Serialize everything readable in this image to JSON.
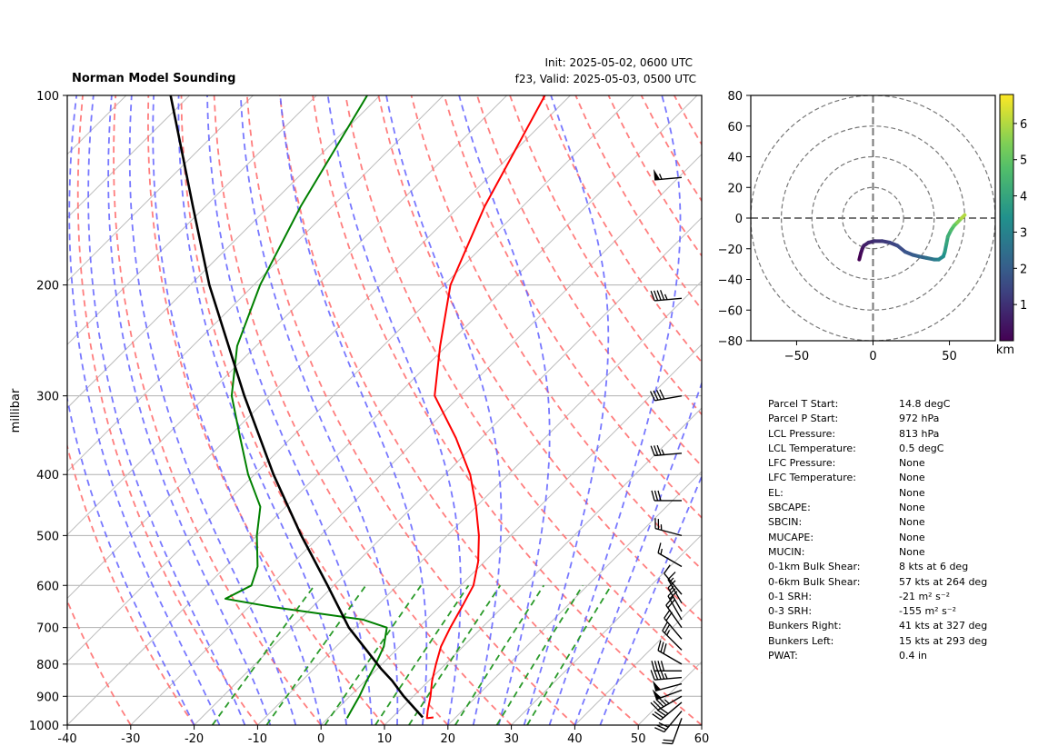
{
  "header": {
    "title": "Norman Model Sounding",
    "init_line": "Init: 2025-05-02, 0600 UTC",
    "valid_line": "f23, Valid: 2025-05-03, 0500 UTC"
  },
  "chart_data": [
    {
      "type": "line",
      "name": "skew-t",
      "ylabel": "millibar",
      "xlim": [
        -40,
        60
      ],
      "ylim": [
        1000,
        100
      ],
      "y_scale": "log",
      "x_ticks": [
        "-40",
        "-30",
        "-20",
        "-10",
        "0",
        "10",
        "20",
        "30",
        "40",
        "50",
        "60"
      ],
      "y_ticks": [
        "1000",
        "900",
        "800",
        "700",
        "600",
        "500",
        "400",
        "300",
        "200",
        "100"
      ],
      "grid": true,
      "colors": {
        "temperature": "#ff0000",
        "dewpoint": "#008000",
        "parcel": "#000000",
        "dry_adiabat": "#ff7070",
        "moist_adiabat": "#6060ff",
        "mixing_ratio": "#2a9a2a",
        "isotherm": "#bbbbbb"
      },
      "temperature": {
        "p": [
          972,
          975,
          950,
          900,
          850,
          800,
          750,
          700,
          650,
          600,
          550,
          500,
          450,
          400,
          350,
          300,
          250,
          200,
          150,
          100
        ],
        "t": [
          16.5,
          15.6,
          14.6,
          12.7,
          10.5,
          8.5,
          6.5,
          5.0,
          3.6,
          2.0,
          -1.0,
          -5.0,
          -10.0,
          -16.0,
          -24.0,
          -34.0,
          -41.0,
          -49.0,
          -56.0,
          -64.0
        ]
      },
      "dewpoint": {
        "p": [
          975,
          950,
          900,
          850,
          800,
          750,
          700,
          680,
          650,
          630,
          600,
          560,
          500,
          450,
          400,
          350,
          300,
          250,
          200,
          150,
          100
        ],
        "td": [
          3.0,
          2.5,
          1.5,
          0.2,
          -1.0,
          -2.5,
          -5.0,
          -10.0,
          -26.0,
          -35.0,
          -33.0,
          -35.0,
          -40.0,
          -44.0,
          -51.0,
          -58.0,
          -66.0,
          -73.0,
          -79.0,
          -85.0,
          -92.0
        ]
      },
      "parcel": {
        "p": [
          972,
          900,
          850,
          813,
          700,
          600,
          500,
          400,
          300,
          200,
          150,
          100
        ],
        "t": [
          14.8,
          8.5,
          4.2,
          0.5,
          -11.0,
          -21.0,
          -33.0,
          -47.0,
          -64.0,
          -87.0,
          -102.0,
          -123.0
        ]
      },
      "wind_barbs": {
        "p": [
          135,
          210,
          300,
          370,
          440,
          500,
          560,
          620,
          640,
          660,
          680,
          700,
          730,
          760,
          800,
          820,
          840,
          860,
          880,
          900,
          920,
          950,
          975
        ],
        "speed_kts": [
          55,
          45,
          40,
          35,
          30,
          25,
          15,
          12,
          15,
          18,
          20,
          20,
          22,
          25,
          30,
          40,
          45,
          50,
          50,
          45,
          40,
          30,
          20
        ],
        "direction_deg": [
          265,
          265,
          260,
          265,
          270,
          285,
          300,
          320,
          330,
          330,
          330,
          325,
          320,
          315,
          300,
          270,
          265,
          255,
          250,
          240,
          230,
          220,
          200
        ]
      }
    },
    {
      "type": "line",
      "name": "hodograph",
      "xlabel": "",
      "colorbar_label": "km",
      "xlim": [
        -80,
        80
      ],
      "ylim": [
        -80,
        80
      ],
      "x_ticks": [
        "−50",
        "0",
        "50"
      ],
      "y_ticks": [
        "80",
        "60",
        "40",
        "20",
        "0",
        "−20",
        "−40",
        "−60",
        "−80"
      ],
      "colorbar_ticks": [
        "1",
        "2",
        "3",
        "4",
        "5",
        "6"
      ],
      "colorbar_range": [
        0,
        6.8
      ],
      "rings": [
        20,
        40,
        60,
        80
      ],
      "u": [
        -9,
        -8,
        -7,
        -6,
        -3,
        1,
        6,
        11,
        16,
        21,
        26,
        30,
        35,
        40,
        43,
        46,
        47,
        48,
        49,
        51,
        53,
        55,
        58,
        60
      ],
      "v": [
        -27,
        -23,
        -20,
        -18,
        -16,
        -15,
        -15,
        -16,
        -18,
        -22,
        -24,
        -25,
        -26,
        -27,
        -27,
        -25,
        -22,
        -17,
        -12,
        -8,
        -5,
        -3,
        0,
        2
      ],
      "height_km": [
        0.0,
        0.2,
        0.4,
        0.6,
        0.8,
        1.0,
        1.2,
        1.4,
        1.6,
        1.8,
        2.0,
        2.2,
        2.5,
        2.8,
        3.1,
        3.4,
        3.7,
        4.0,
        4.3,
        4.7,
        5.1,
        5.5,
        6.0,
        6.5
      ]
    }
  ],
  "parameters": [
    {
      "label": "Parcel T Start:",
      "value": "14.8 degC"
    },
    {
      "label": "Parcel P Start:",
      "value": "972 hPa"
    },
    {
      "label": "LCL Pressure:",
      "value": "813 hPa"
    },
    {
      "label": "LCL Temperature:",
      "value": "0.5 degC"
    },
    {
      "label": "LFC Pressure:",
      "value": "None"
    },
    {
      "label": "LFC Temperature:",
      "value": "None"
    },
    {
      "label": "EL:",
      "value": "None"
    },
    {
      "label": "SBCAPE:",
      "value": "None"
    },
    {
      "label": "SBCIN:",
      "value": "None"
    },
    {
      "label": "MUCAPE:",
      "value": "None"
    },
    {
      "label": "MUCIN:",
      "value": "None"
    },
    {
      "label": "0-1km Bulk Shear:",
      "value": "8 kts at 6 deg"
    },
    {
      "label": "0-6km Bulk Shear:",
      "value": "57 kts at 264 deg"
    },
    {
      "label": "0-1 SRH:",
      "value": "-21 m² s⁻²"
    },
    {
      "label": "0-3 SRH:",
      "value": "-155 m² s⁻²"
    },
    {
      "label": "Bunkers Right:",
      "value": "41 kts at 327 deg"
    },
    {
      "label": "Bunkers Left:",
      "value": "15 kts at 293 deg"
    },
    {
      "label": "PWAT:",
      "value": "0.4 in"
    }
  ]
}
